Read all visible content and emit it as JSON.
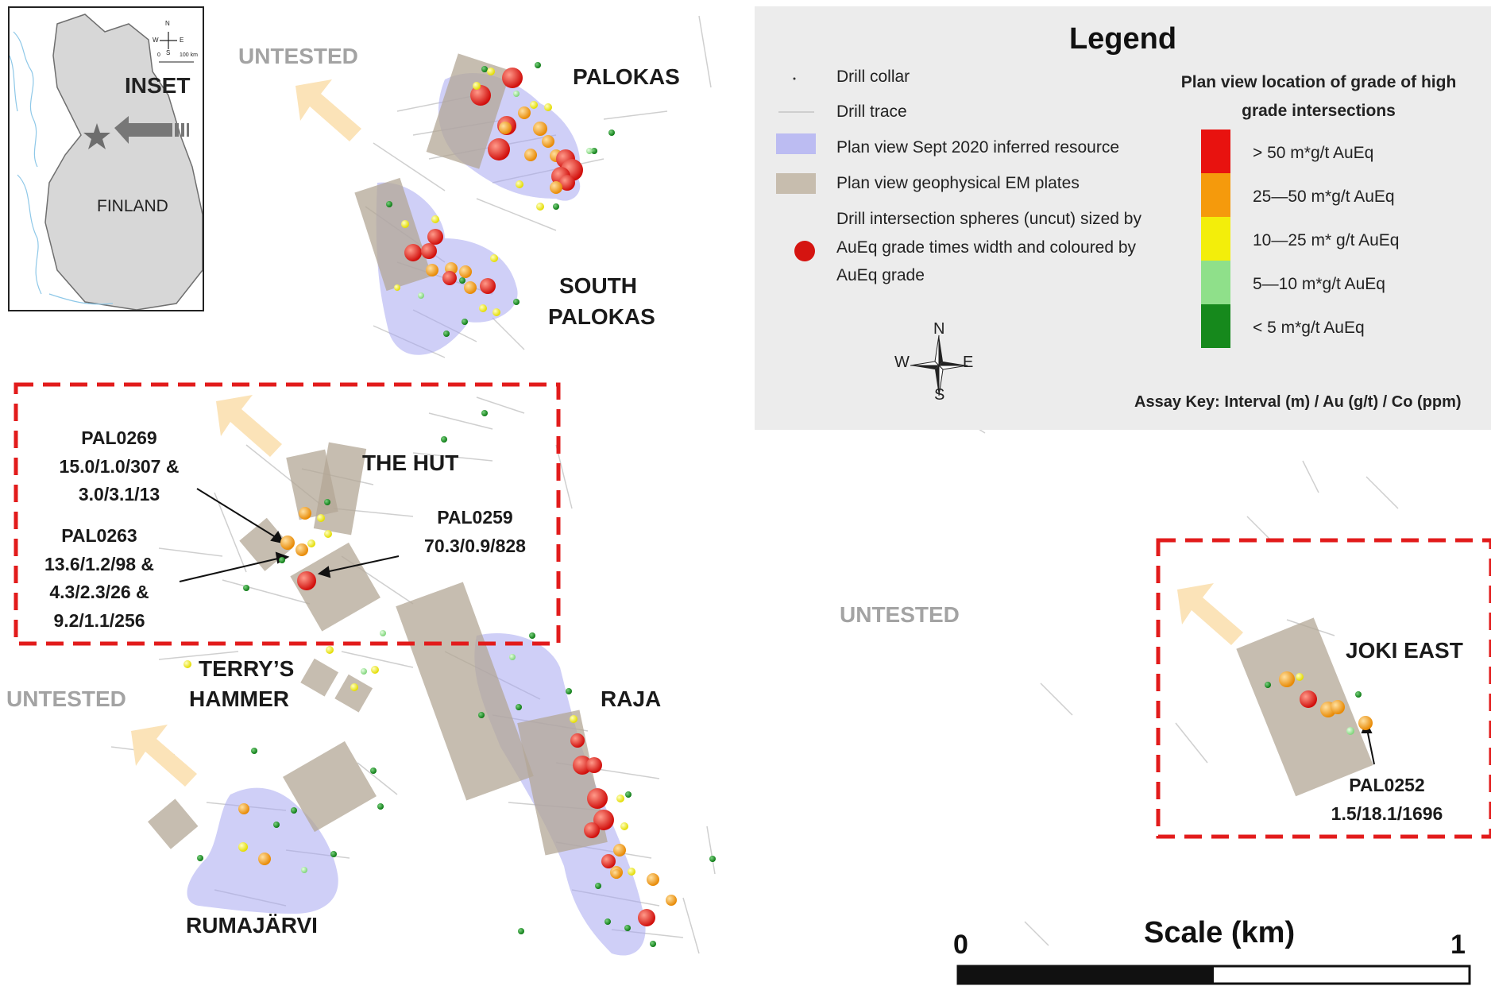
{
  "inset": {
    "title": "INSET",
    "country": "FINLAND",
    "compass_letters": {
      "n": "N",
      "s": "S",
      "e": "E",
      "w": "W"
    },
    "mini_scale": {
      "start": "0",
      "end": "100 km"
    }
  },
  "untested_labels": [
    "UNTESTED",
    "UNTESTED",
    "UNTESTED"
  ],
  "prospects": {
    "palokas": "PALOKAS",
    "south_palokas_1": "SOUTH",
    "south_palokas_2": "PALOKAS",
    "the_hut": "THE HUT",
    "terrys_1": "TERRY’S",
    "terrys_2": "HAMMER",
    "raja": "RAJA",
    "rumajarvi": "RUMAJÄRVI",
    "joki_east": "JOKI EAST"
  },
  "assays": {
    "pal0269": {
      "hole": "PAL0269",
      "line1": "15.0/1.0/307 &",
      "line2": "3.0/3.1/13"
    },
    "pal0263": {
      "hole": "PAL0263",
      "line1": "13.6/1.2/98 &",
      "line2": "4.3/2.3/26 &",
      "line3": "9.2/1.1/256"
    },
    "pal0259": {
      "hole": "PAL0259",
      "line1": "70.3/0.9/828"
    },
    "pal0252": {
      "hole": "PAL0252",
      "line1": "1.5/18.1/1696"
    }
  },
  "legend": {
    "title": "Legend",
    "items": {
      "collar": "Drill collar",
      "trace": "Drill trace",
      "resource": "Plan view Sept 2020 inferred resource",
      "em_plates": "Plan view geophysical EM plates",
      "spheres_1": "Drill intersection spheres (uncut) sized by",
      "spheres_2": "AuEq grade times width and coloured by",
      "spheres_3": "AuEq grade"
    },
    "grade_heading_1": "Plan view location of grade of high",
    "grade_heading_2": "grade intersections",
    "grades": [
      {
        "label": "> 50  m*g/t  AuEq",
        "color": "#e8120f"
      },
      {
        "label": "25—50 m*g/t AuEq",
        "color": "#f59a0c"
      },
      {
        "label": "10—25 m* g/t AuEq",
        "color": "#f3ee0a"
      },
      {
        "label": "5—10 m*g/t AuEq",
        "color": "#8fe08a"
      },
      {
        "label": "< 5 m*g/t AuEq",
        "color": "#16891c"
      }
    ],
    "compass": {
      "n": "N",
      "s": "S",
      "e": "E",
      "w": "W"
    },
    "assay_key": "Assay Key: Interval (m) / Au (g/t) / Co (ppm)"
  },
  "scale": {
    "title": "Scale (km)",
    "start": "0",
    "end": "1"
  },
  "colors": {
    "resource_fill": "#a8a8f0",
    "em_plate_fill": "#b3a795",
    "untested_arrow": "#fbe3b8",
    "box_outline": "#e21b1b",
    "drill_trace": "#bdbdbd"
  }
}
